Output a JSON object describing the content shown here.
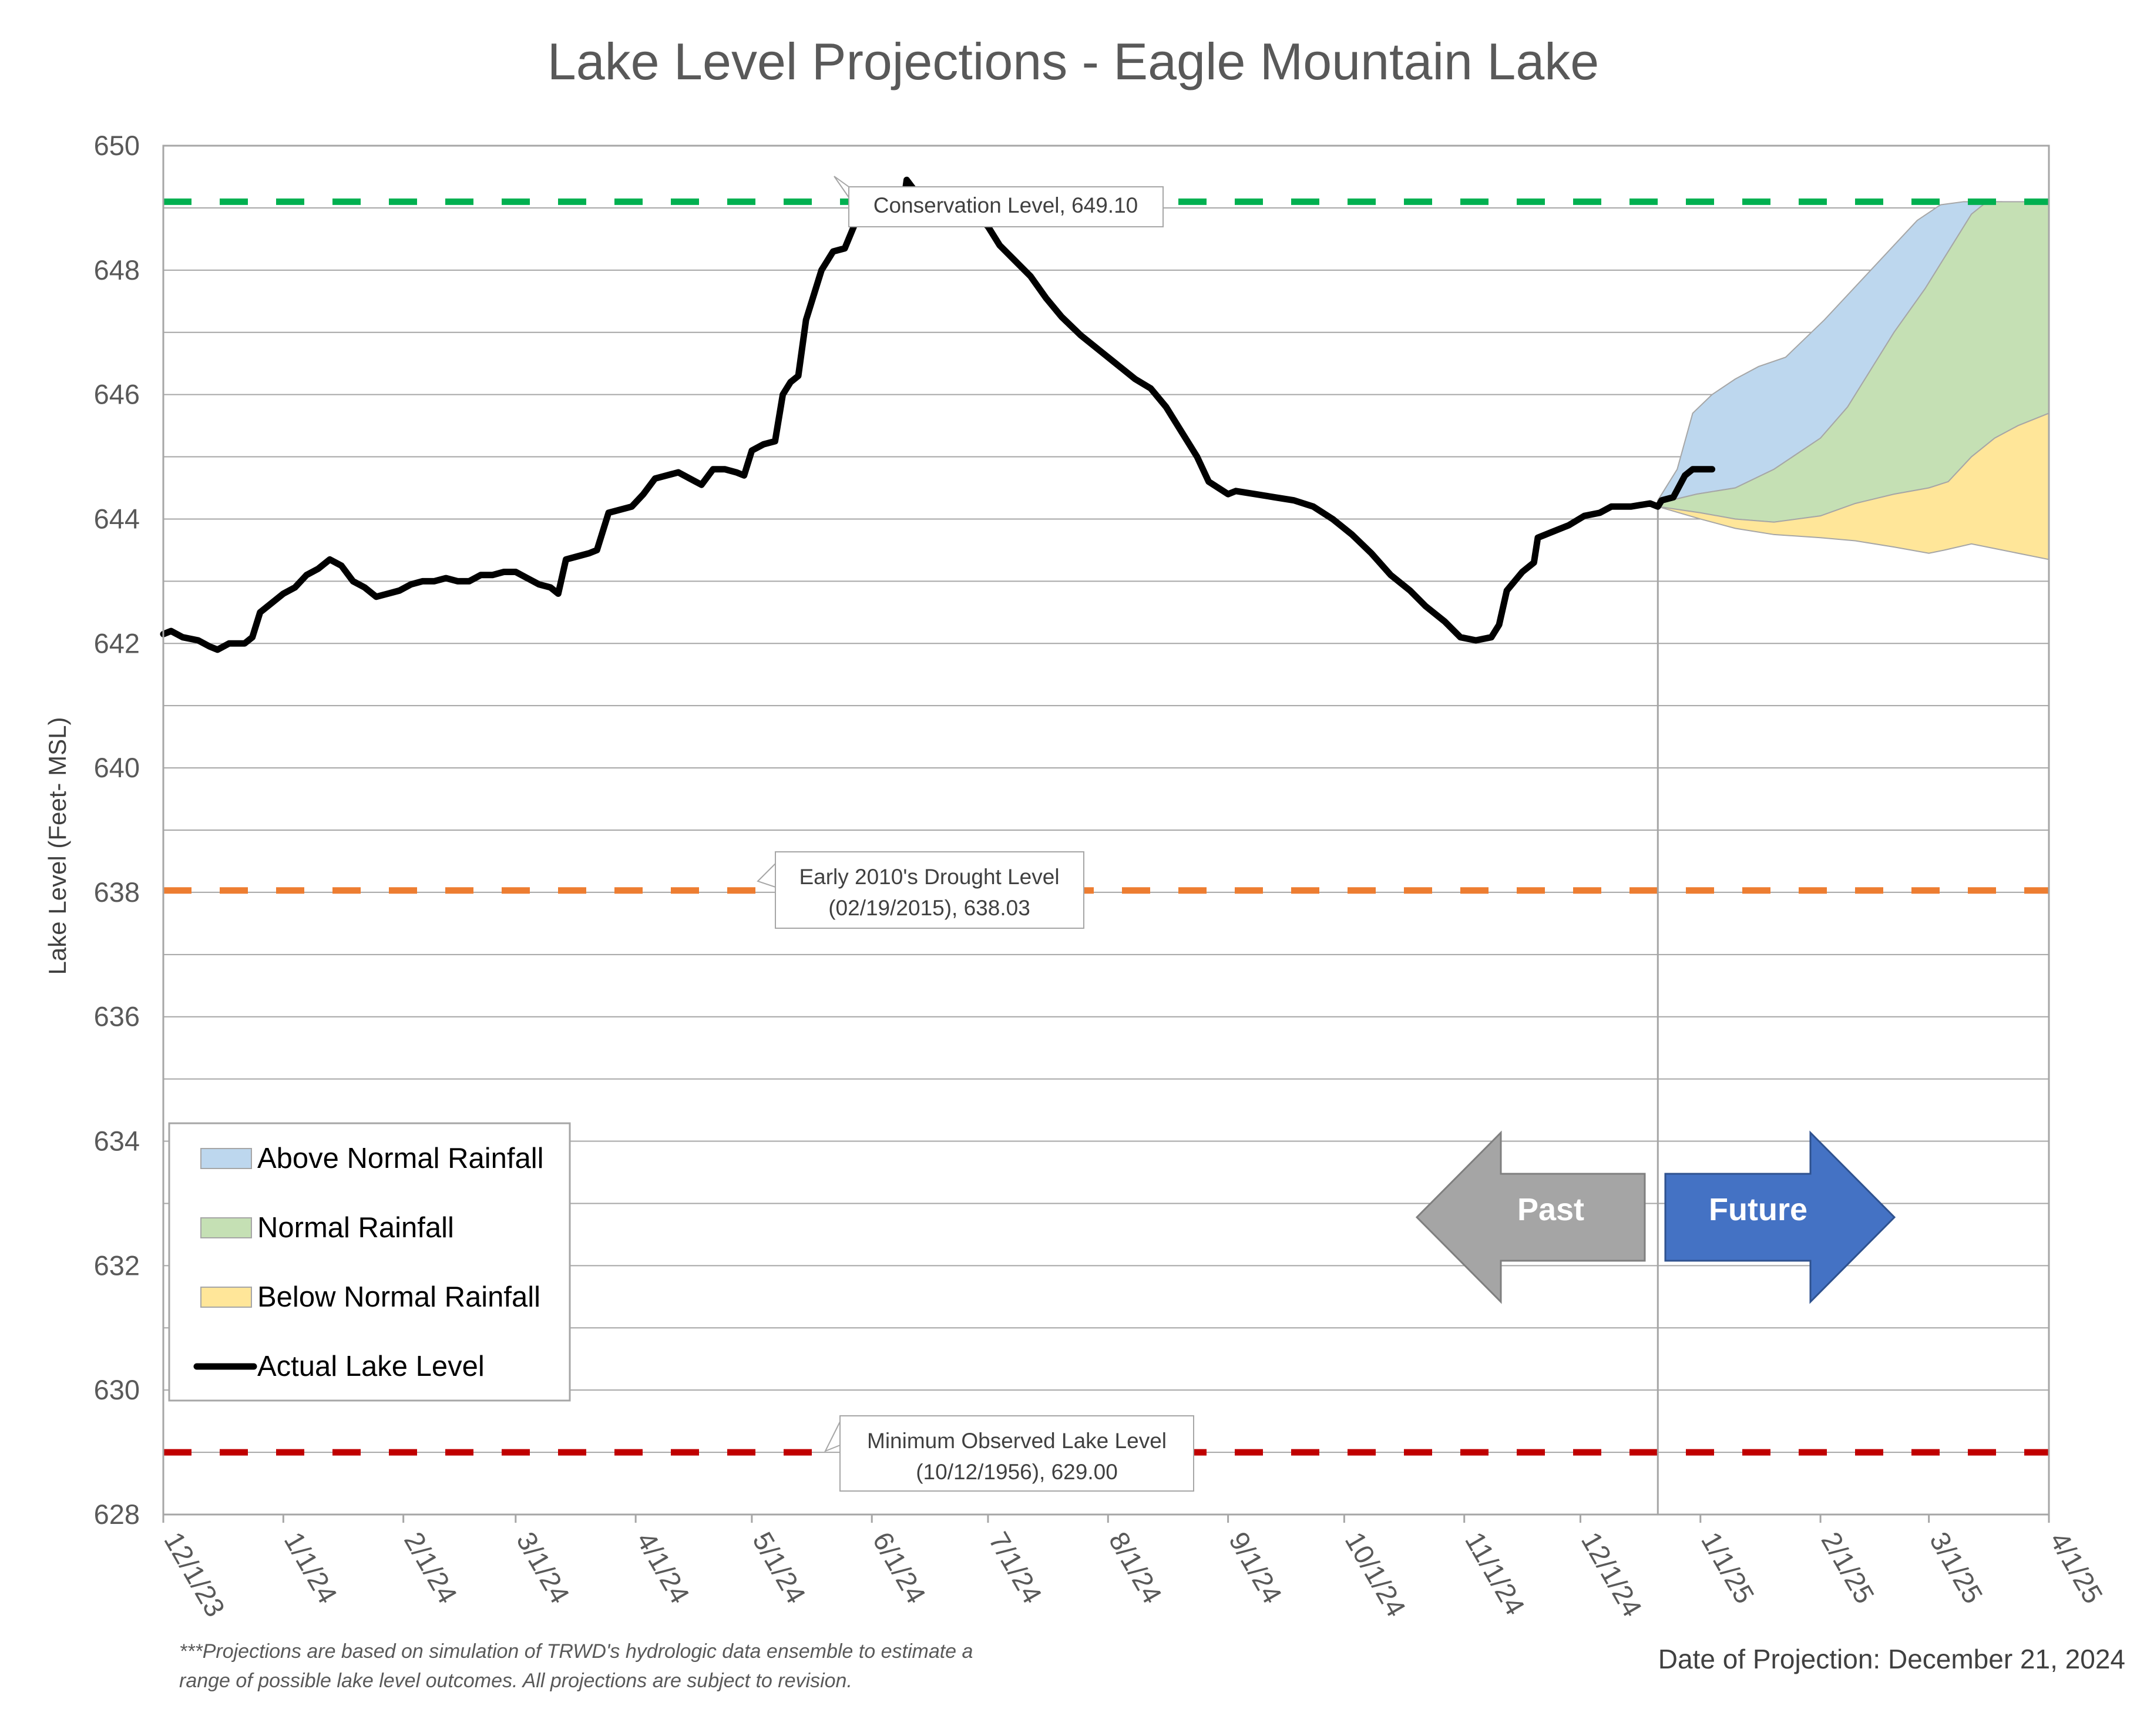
{
  "chart_data": {
    "type": "line",
    "title": "Lake Level Projections - Eagle Mountain Lake",
    "ylabel": "Lake Level (Feet- MSL)",
    "xlabel": "",
    "ylim": [
      628,
      650
    ],
    "y_ticks": [
      628,
      630,
      632,
      634,
      636,
      638,
      640,
      642,
      644,
      646,
      648,
      650
    ],
    "x_ticks": [
      {
        "label": "12/1/23",
        "date": "2023-12-01"
      },
      {
        "label": "1/1/24",
        "date": "2024-01-01"
      },
      {
        "label": "2/1/24",
        "date": "2024-02-01"
      },
      {
        "label": "3/1/24",
        "date": "2024-03-01"
      },
      {
        "label": "4/1/24",
        "date": "2024-04-01"
      },
      {
        "label": "5/1/24",
        "date": "2024-05-01"
      },
      {
        "label": "6/1/24",
        "date": "2024-06-01"
      },
      {
        "label": "7/1/24",
        "date": "2024-07-01"
      },
      {
        "label": "8/1/24",
        "date": "2024-08-01"
      },
      {
        "label": "9/1/24",
        "date": "2024-09-01"
      },
      {
        "label": "10/1/24",
        "date": "2024-10-01"
      },
      {
        "label": "11/1/24",
        "date": "2024-11-01"
      },
      {
        "label": "12/1/24",
        "date": "2024-12-01"
      },
      {
        "label": "1/1/25",
        "date": "2025-01-01"
      },
      {
        "label": "2/1/25",
        "date": "2025-02-01"
      },
      {
        "label": "3/1/25",
        "date": "2025-03-01"
      },
      {
        "label": "4/1/25",
        "date": "2025-04-01"
      }
    ],
    "grid": "horizontal",
    "projection_date": "2024-12-21",
    "reference_lines": [
      {
        "name": "Conservation Level",
        "value": 649.1,
        "color": "#00b050",
        "label": "Conservation Level, 649.10"
      },
      {
        "name": "Early 2010's Drought Level",
        "value": 638.03,
        "color": "#ed7d31",
        "label_line1": "Early 2010's Drought Level",
        "label_line2": "(02/19/2015), 638.03"
      },
      {
        "name": "Minimum Observed Lake Level",
        "value": 629.0,
        "color": "#c00000",
        "label_line1": "Minimum Observed Lake Level",
        "label_line2": "(10/12/1956), 629.00"
      }
    ],
    "series": [
      {
        "name": "Actual Lake Level",
        "color": "#000000",
        "points": [
          [
            "2023-12-01",
            642.15
          ],
          [
            "2023-12-03",
            642.2
          ],
          [
            "2023-12-06",
            642.1
          ],
          [
            "2023-12-10",
            642.05
          ],
          [
            "2023-12-13",
            641.95
          ],
          [
            "2023-12-15",
            641.9
          ],
          [
            "2023-12-18",
            642.0
          ],
          [
            "2023-12-22",
            642.0
          ],
          [
            "2023-12-24",
            642.1
          ],
          [
            "2023-12-26",
            642.5
          ],
          [
            "2023-12-29",
            642.65
          ],
          [
            "2024-01-01",
            642.8
          ],
          [
            "2024-01-04",
            642.9
          ],
          [
            "2024-01-07",
            643.1
          ],
          [
            "2024-01-10",
            643.2
          ],
          [
            "2024-01-13",
            643.35
          ],
          [
            "2024-01-16",
            643.25
          ],
          [
            "2024-01-19",
            643.0
          ],
          [
            "2024-01-22",
            642.9
          ],
          [
            "2024-01-25",
            642.75
          ],
          [
            "2024-01-28",
            642.8
          ],
          [
            "2024-01-31",
            642.85
          ],
          [
            "2024-02-03",
            642.95
          ],
          [
            "2024-02-06",
            643.0
          ],
          [
            "2024-02-09",
            643.0
          ],
          [
            "2024-02-12",
            643.05
          ],
          [
            "2024-02-15",
            643.0
          ],
          [
            "2024-02-18",
            643.0
          ],
          [
            "2024-02-21",
            643.1
          ],
          [
            "2024-02-24",
            643.1
          ],
          [
            "2024-02-27",
            643.15
          ],
          [
            "2024-03-01",
            643.15
          ],
          [
            "2024-03-04",
            643.05
          ],
          [
            "2024-03-07",
            642.95
          ],
          [
            "2024-03-10",
            642.9
          ],
          [
            "2024-03-12",
            642.8
          ],
          [
            "2024-03-14",
            643.35
          ],
          [
            "2024-03-17",
            643.4
          ],
          [
            "2024-03-20",
            643.45
          ],
          [
            "2024-03-22",
            643.5
          ],
          [
            "2024-03-25",
            644.1
          ],
          [
            "2024-03-28",
            644.15
          ],
          [
            "2024-03-31",
            644.2
          ],
          [
            "2024-04-03",
            644.4
          ],
          [
            "2024-04-06",
            644.65
          ],
          [
            "2024-04-09",
            644.7
          ],
          [
            "2024-04-12",
            644.75
          ],
          [
            "2024-04-15",
            644.65
          ],
          [
            "2024-04-18",
            644.55
          ],
          [
            "2024-04-21",
            644.8
          ],
          [
            "2024-04-24",
            644.8
          ],
          [
            "2024-04-27",
            644.75
          ],
          [
            "2024-04-29",
            644.7
          ],
          [
            "2024-05-01",
            645.1
          ],
          [
            "2024-05-04",
            645.2
          ],
          [
            "2024-05-07",
            645.25
          ],
          [
            "2024-05-09",
            646.0
          ],
          [
            "2024-05-11",
            646.2
          ],
          [
            "2024-05-13",
            646.3
          ],
          [
            "2024-05-15",
            647.2
          ],
          [
            "2024-05-17",
            647.6
          ],
          [
            "2024-05-19",
            648.0
          ],
          [
            "2024-05-22",
            648.3
          ],
          [
            "2024-05-25",
            648.35
          ],
          [
            "2024-05-28",
            648.8
          ],
          [
            "2024-05-31",
            648.95
          ],
          [
            "2024-06-03",
            649.0
          ],
          [
            "2024-06-06",
            649.0
          ],
          [
            "2024-06-09",
            649.0
          ],
          [
            "2024-06-10",
            649.45
          ],
          [
            "2024-06-13",
            649.2
          ],
          [
            "2024-06-20",
            649.05
          ],
          [
            "2024-06-27",
            648.95
          ],
          [
            "2024-07-01",
            648.7
          ],
          [
            "2024-07-04",
            648.4
          ],
          [
            "2024-07-08",
            648.15
          ],
          [
            "2024-07-12",
            647.9
          ],
          [
            "2024-07-16",
            647.55
          ],
          [
            "2024-07-20",
            647.25
          ],
          [
            "2024-07-25",
            646.95
          ],
          [
            "2024-07-30",
            646.7
          ],
          [
            "2024-08-03",
            646.5
          ],
          [
            "2024-08-08",
            646.25
          ],
          [
            "2024-08-12",
            646.1
          ],
          [
            "2024-08-16",
            645.8
          ],
          [
            "2024-08-20",
            645.4
          ],
          [
            "2024-08-24",
            645.0
          ],
          [
            "2024-08-27",
            644.6
          ],
          [
            "2024-09-01",
            644.4
          ],
          [
            "2024-09-03",
            644.45
          ],
          [
            "2024-09-08",
            644.4
          ],
          [
            "2024-09-13",
            644.35
          ],
          [
            "2024-09-18",
            644.3
          ],
          [
            "2024-09-23",
            644.2
          ],
          [
            "2024-09-28",
            644.0
          ],
          [
            "2024-10-03",
            643.75
          ],
          [
            "2024-10-08",
            643.45
          ],
          [
            "2024-10-13",
            643.1
          ],
          [
            "2024-10-18",
            642.85
          ],
          [
            "2024-10-22",
            642.6
          ],
          [
            "2024-10-27",
            642.35
          ],
          [
            "2024-10-31",
            642.1
          ],
          [
            "2024-11-04",
            642.05
          ],
          [
            "2024-11-08",
            642.1
          ],
          [
            "2024-11-10",
            642.3
          ],
          [
            "2024-11-12",
            642.85
          ],
          [
            "2024-11-16",
            643.15
          ],
          [
            "2024-11-19",
            643.3
          ],
          [
            "2024-11-20",
            643.7
          ],
          [
            "2024-11-24",
            643.8
          ],
          [
            "2024-11-28",
            643.9
          ],
          [
            "2024-12-02",
            644.05
          ],
          [
            "2024-12-06",
            644.1
          ],
          [
            "2024-12-09",
            644.2
          ],
          [
            "2024-12-14",
            644.2
          ],
          [
            "2024-12-19",
            644.25
          ],
          [
            "2024-12-21",
            644.2
          ],
          [
            "2024-12-22",
            644.3
          ],
          [
            "2024-12-25",
            644.35
          ],
          [
            "2024-12-28",
            644.7
          ],
          [
            "2024-12-30",
            644.8
          ],
          [
            "2025-01-02",
            644.8
          ],
          [
            "2025-01-04",
            644.8
          ]
        ]
      },
      {
        "name": "Above Normal Rainfall",
        "color": "#bdd7ee",
        "type": "band",
        "upper": [
          [
            "2024-12-21",
            644.3
          ],
          [
            "2024-12-26",
            644.8
          ],
          [
            "2024-12-30",
            645.7
          ],
          [
            "2025-01-04",
            646.0
          ],
          [
            "2025-01-10",
            646.25
          ],
          [
            "2025-01-16",
            646.45
          ],
          [
            "2025-01-23",
            646.6
          ],
          [
            "2025-01-28",
            646.9
          ],
          [
            "2025-02-02",
            647.2
          ],
          [
            "2025-02-08",
            647.6
          ],
          [
            "2025-02-14",
            648.0
          ],
          [
            "2025-02-20",
            648.4
          ],
          [
            "2025-02-26",
            648.8
          ],
          [
            "2025-03-04",
            649.05
          ],
          [
            "2025-03-10",
            649.1
          ],
          [
            "2025-03-20",
            649.1
          ]
        ],
        "lower": [
          [
            "2024-12-21",
            644.25
          ],
          [
            "2024-12-31",
            644.4
          ],
          [
            "2025-01-10",
            644.5
          ],
          [
            "2025-01-20",
            644.8
          ],
          [
            "2025-02-01",
            645.3
          ],
          [
            "2025-02-08",
            645.8
          ],
          [
            "2025-02-14",
            646.4
          ],
          [
            "2025-02-20",
            647.0
          ],
          [
            "2025-02-28",
            647.7
          ],
          [
            "2025-03-06",
            648.3
          ],
          [
            "2025-03-12",
            648.9
          ],
          [
            "2025-03-16",
            649.1
          ]
        ]
      },
      {
        "name": "Normal Rainfall",
        "color": "#c5e0b4",
        "type": "band",
        "upper": [
          [
            "2024-12-21",
            644.25
          ],
          [
            "2024-12-31",
            644.4
          ],
          [
            "2025-01-10",
            644.5
          ],
          [
            "2025-01-20",
            644.8
          ],
          [
            "2025-02-01",
            645.3
          ],
          [
            "2025-02-08",
            645.8
          ],
          [
            "2025-02-14",
            646.4
          ],
          [
            "2025-02-20",
            647.0
          ],
          [
            "2025-02-28",
            647.7
          ],
          [
            "2025-03-06",
            648.3
          ],
          [
            "2025-03-12",
            648.9
          ],
          [
            "2025-03-16",
            649.1
          ],
          [
            "2025-04-01",
            649.1
          ]
        ],
        "lower": [
          [
            "2024-12-21",
            644.2
          ],
          [
            "2025-01-01",
            644.1
          ],
          [
            "2025-01-10",
            644.0
          ],
          [
            "2025-01-20",
            643.95
          ],
          [
            "2025-02-01",
            644.05
          ],
          [
            "2025-02-10",
            644.25
          ],
          [
            "2025-02-20",
            644.4
          ],
          [
            "2025-03-01",
            644.5
          ],
          [
            "2025-03-06",
            644.6
          ],
          [
            "2025-03-12",
            645.0
          ],
          [
            "2025-03-18",
            645.3
          ],
          [
            "2025-03-24",
            645.5
          ],
          [
            "2025-04-01",
            645.7
          ]
        ]
      },
      {
        "name": "Below Normal Rainfall",
        "color": "#ffe699",
        "type": "band",
        "upper": [
          [
            "2024-12-21",
            644.2
          ],
          [
            "2025-01-01",
            644.1
          ],
          [
            "2025-01-10",
            644.0
          ],
          [
            "2025-01-20",
            643.95
          ],
          [
            "2025-02-01",
            644.05
          ],
          [
            "2025-02-10",
            644.25
          ],
          [
            "2025-02-20",
            644.4
          ],
          [
            "2025-03-01",
            644.5
          ],
          [
            "2025-03-06",
            644.6
          ],
          [
            "2025-03-12",
            645.0
          ],
          [
            "2025-03-18",
            645.3
          ],
          [
            "2025-03-24",
            645.5
          ],
          [
            "2025-04-01",
            645.7
          ]
        ],
        "lower": [
          [
            "2024-12-21",
            644.2
          ],
          [
            "2025-01-01",
            644.0
          ],
          [
            "2025-01-10",
            643.85
          ],
          [
            "2025-01-20",
            643.75
          ],
          [
            "2025-02-01",
            643.7
          ],
          [
            "2025-02-10",
            643.65
          ],
          [
            "2025-02-20",
            643.55
          ],
          [
            "2025-03-01",
            643.45
          ],
          [
            "2025-03-05",
            643.5
          ],
          [
            "2025-03-12",
            643.6
          ],
          [
            "2025-03-20",
            643.5
          ],
          [
            "2025-04-01",
            643.35
          ]
        ]
      }
    ],
    "legend": {
      "placement": "bottom-left",
      "items": [
        {
          "label": "Above Normal Rainfall",
          "color": "#bdd7ee",
          "kind": "swatch"
        },
        {
          "label": "Normal Rainfall",
          "color": "#c5e0b4",
          "kind": "swatch"
        },
        {
          "label": "Below Normal Rainfall",
          "color": "#ffe699",
          "kind": "swatch"
        },
        {
          "label": "Actual Lake Level",
          "color": "#000000",
          "kind": "line"
        }
      ]
    },
    "annotations": {
      "past_label": "Past",
      "future_label": "Future",
      "past_color": "#a5a5a5",
      "future_color": "#4472c4",
      "footnote_line1": "***Projections are based on simulation of TRWD's hydrologic data ensemble to estimate a",
      "footnote_line2": "range of possible lake level outcomes.  All projections are subject to revision.",
      "projection_label": "Date of Projection: December 21, 2024"
    }
  }
}
